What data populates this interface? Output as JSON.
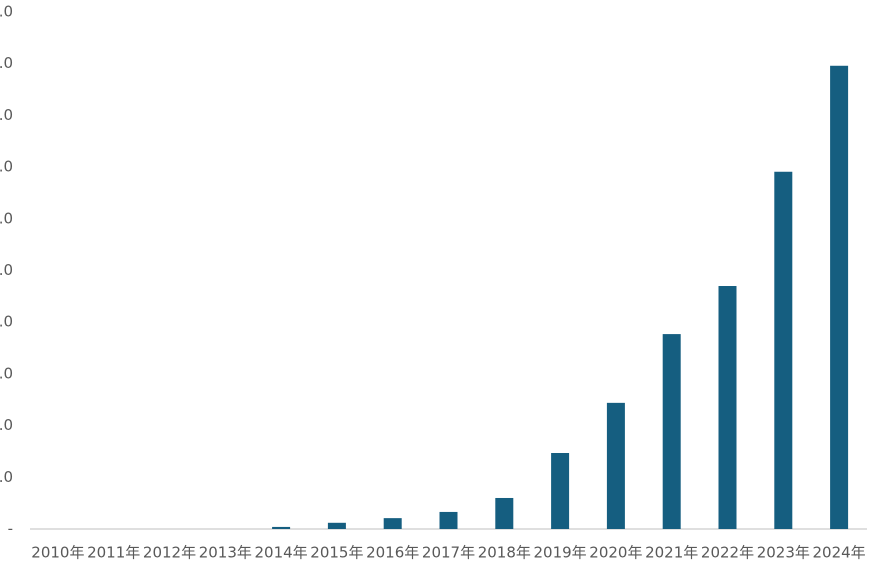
{
  "chart_data": {
    "type": "bar",
    "categories": [
      "2010年",
      "2011年",
      "2012年",
      "2013年",
      "2014年",
      "2015年",
      "2016年",
      "2017年",
      "2018年",
      "2019年",
      "2020年",
      "2021年",
      "2022年",
      "2023年",
      "2024年"
    ],
    "values": [
      0,
      0,
      0,
      0,
      0.04,
      0.12,
      0.21,
      0.33,
      0.6,
      1.47,
      2.44,
      3.77,
      4.7,
      6.91,
      8.96
    ],
    "color": "#155e80",
    "ylim": [
      0,
      10
    ],
    "yticks": [
      {
        "value": 0,
        "label": "-"
      },
      {
        "value": 1,
        "label": ".0"
      },
      {
        "value": 2,
        "label": ".0"
      },
      {
        "value": 3,
        "label": ".0"
      },
      {
        "value": 4,
        "label": ".0"
      },
      {
        "value": 5,
        "label": ".0"
      },
      {
        "value": 6,
        "label": ".0"
      },
      {
        "value": 7,
        "label": ".0"
      },
      {
        "value": 8,
        "label": ".0"
      },
      {
        "value": 9,
        "label": ".0"
      },
      {
        "value": 10,
        "label": ".0"
      }
    ],
    "grid": false
  }
}
